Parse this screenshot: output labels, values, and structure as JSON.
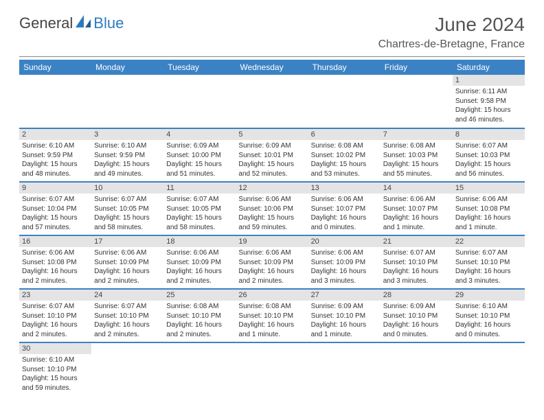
{
  "brand": {
    "part1": "General",
    "part2": "Blue"
  },
  "title": "June 2024",
  "location": "Chartres-de-Bretagne, France",
  "colors": {
    "header_bg": "#3b82c4",
    "header_text": "#ffffff",
    "daynum_bg": "#e4e4e4",
    "row_divider": "#3b82c4",
    "title_color": "#555555",
    "brand_dark": "#444444",
    "brand_blue": "#2b7bbf"
  },
  "weekdays": [
    "Sunday",
    "Monday",
    "Tuesday",
    "Wednesday",
    "Thursday",
    "Friday",
    "Saturday"
  ],
  "weeks": [
    [
      null,
      null,
      null,
      null,
      null,
      null,
      {
        "n": "1",
        "rise": "Sunrise: 6:11 AM",
        "set": "Sunset: 9:58 PM",
        "dl1": "Daylight: 15 hours",
        "dl2": "and 46 minutes."
      }
    ],
    [
      {
        "n": "2",
        "rise": "Sunrise: 6:10 AM",
        "set": "Sunset: 9:59 PM",
        "dl1": "Daylight: 15 hours",
        "dl2": "and 48 minutes."
      },
      {
        "n": "3",
        "rise": "Sunrise: 6:10 AM",
        "set": "Sunset: 9:59 PM",
        "dl1": "Daylight: 15 hours",
        "dl2": "and 49 minutes."
      },
      {
        "n": "4",
        "rise": "Sunrise: 6:09 AM",
        "set": "Sunset: 10:00 PM",
        "dl1": "Daylight: 15 hours",
        "dl2": "and 51 minutes."
      },
      {
        "n": "5",
        "rise": "Sunrise: 6:09 AM",
        "set": "Sunset: 10:01 PM",
        "dl1": "Daylight: 15 hours",
        "dl2": "and 52 minutes."
      },
      {
        "n": "6",
        "rise": "Sunrise: 6:08 AM",
        "set": "Sunset: 10:02 PM",
        "dl1": "Daylight: 15 hours",
        "dl2": "and 53 minutes."
      },
      {
        "n": "7",
        "rise": "Sunrise: 6:08 AM",
        "set": "Sunset: 10:03 PM",
        "dl1": "Daylight: 15 hours",
        "dl2": "and 55 minutes."
      },
      {
        "n": "8",
        "rise": "Sunrise: 6:07 AM",
        "set": "Sunset: 10:03 PM",
        "dl1": "Daylight: 15 hours",
        "dl2": "and 56 minutes."
      }
    ],
    [
      {
        "n": "9",
        "rise": "Sunrise: 6:07 AM",
        "set": "Sunset: 10:04 PM",
        "dl1": "Daylight: 15 hours",
        "dl2": "and 57 minutes."
      },
      {
        "n": "10",
        "rise": "Sunrise: 6:07 AM",
        "set": "Sunset: 10:05 PM",
        "dl1": "Daylight: 15 hours",
        "dl2": "and 58 minutes."
      },
      {
        "n": "11",
        "rise": "Sunrise: 6:07 AM",
        "set": "Sunset: 10:05 PM",
        "dl1": "Daylight: 15 hours",
        "dl2": "and 58 minutes."
      },
      {
        "n": "12",
        "rise": "Sunrise: 6:06 AM",
        "set": "Sunset: 10:06 PM",
        "dl1": "Daylight: 15 hours",
        "dl2": "and 59 minutes."
      },
      {
        "n": "13",
        "rise": "Sunrise: 6:06 AM",
        "set": "Sunset: 10:07 PM",
        "dl1": "Daylight: 16 hours",
        "dl2": "and 0 minutes."
      },
      {
        "n": "14",
        "rise": "Sunrise: 6:06 AM",
        "set": "Sunset: 10:07 PM",
        "dl1": "Daylight: 16 hours",
        "dl2": "and 1 minute."
      },
      {
        "n": "15",
        "rise": "Sunrise: 6:06 AM",
        "set": "Sunset: 10:08 PM",
        "dl1": "Daylight: 16 hours",
        "dl2": "and 1 minute."
      }
    ],
    [
      {
        "n": "16",
        "rise": "Sunrise: 6:06 AM",
        "set": "Sunset: 10:08 PM",
        "dl1": "Daylight: 16 hours",
        "dl2": "and 2 minutes."
      },
      {
        "n": "17",
        "rise": "Sunrise: 6:06 AM",
        "set": "Sunset: 10:09 PM",
        "dl1": "Daylight: 16 hours",
        "dl2": "and 2 minutes."
      },
      {
        "n": "18",
        "rise": "Sunrise: 6:06 AM",
        "set": "Sunset: 10:09 PM",
        "dl1": "Daylight: 16 hours",
        "dl2": "and 2 minutes."
      },
      {
        "n": "19",
        "rise": "Sunrise: 6:06 AM",
        "set": "Sunset: 10:09 PM",
        "dl1": "Daylight: 16 hours",
        "dl2": "and 2 minutes."
      },
      {
        "n": "20",
        "rise": "Sunrise: 6:06 AM",
        "set": "Sunset: 10:09 PM",
        "dl1": "Daylight: 16 hours",
        "dl2": "and 3 minutes."
      },
      {
        "n": "21",
        "rise": "Sunrise: 6:07 AM",
        "set": "Sunset: 10:10 PM",
        "dl1": "Daylight: 16 hours",
        "dl2": "and 3 minutes."
      },
      {
        "n": "22",
        "rise": "Sunrise: 6:07 AM",
        "set": "Sunset: 10:10 PM",
        "dl1": "Daylight: 16 hours",
        "dl2": "and 3 minutes."
      }
    ],
    [
      {
        "n": "23",
        "rise": "Sunrise: 6:07 AM",
        "set": "Sunset: 10:10 PM",
        "dl1": "Daylight: 16 hours",
        "dl2": "and 2 minutes."
      },
      {
        "n": "24",
        "rise": "Sunrise: 6:07 AM",
        "set": "Sunset: 10:10 PM",
        "dl1": "Daylight: 16 hours",
        "dl2": "and 2 minutes."
      },
      {
        "n": "25",
        "rise": "Sunrise: 6:08 AM",
        "set": "Sunset: 10:10 PM",
        "dl1": "Daylight: 16 hours",
        "dl2": "and 2 minutes."
      },
      {
        "n": "26",
        "rise": "Sunrise: 6:08 AM",
        "set": "Sunset: 10:10 PM",
        "dl1": "Daylight: 16 hours",
        "dl2": "and 1 minute."
      },
      {
        "n": "27",
        "rise": "Sunrise: 6:09 AM",
        "set": "Sunset: 10:10 PM",
        "dl1": "Daylight: 16 hours",
        "dl2": "and 1 minute."
      },
      {
        "n": "28",
        "rise": "Sunrise: 6:09 AM",
        "set": "Sunset: 10:10 PM",
        "dl1": "Daylight: 16 hours",
        "dl2": "and 0 minutes."
      },
      {
        "n": "29",
        "rise": "Sunrise: 6:10 AM",
        "set": "Sunset: 10:10 PM",
        "dl1": "Daylight: 16 hours",
        "dl2": "and 0 minutes."
      }
    ],
    [
      {
        "n": "30",
        "rise": "Sunrise: 6:10 AM",
        "set": "Sunset: 10:10 PM",
        "dl1": "Daylight: 15 hours",
        "dl2": "and 59 minutes."
      },
      null,
      null,
      null,
      null,
      null,
      null
    ]
  ]
}
